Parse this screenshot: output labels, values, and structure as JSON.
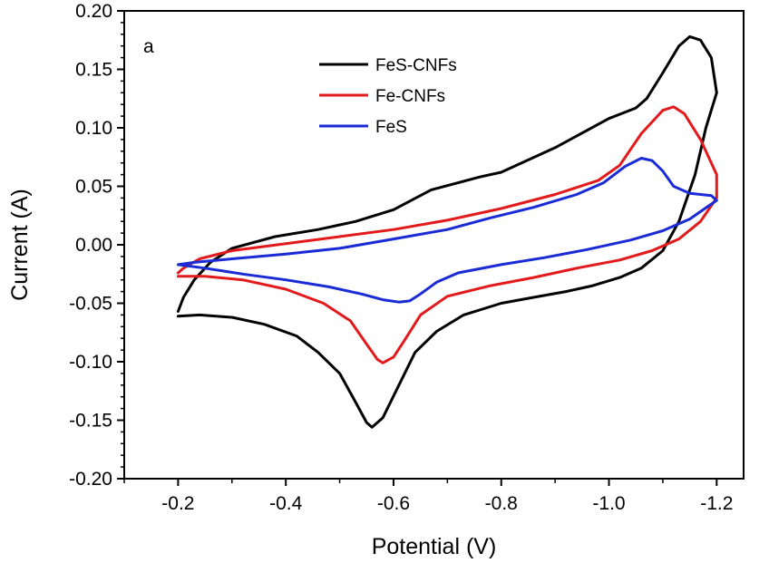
{
  "chart_data": {
    "type": "line",
    "panel_label": "a",
    "xlabel": "Potential (V)",
    "ylabel": "Current (A)",
    "xlim": [
      -0.1,
      -1.25
    ],
    "ylim": [
      -0.2,
      0.2
    ],
    "x_ticks": [
      -0.2,
      -0.4,
      -0.6,
      -0.8,
      -1.0,
      -1.2
    ],
    "x_tick_labels": [
      "-0.2",
      "-0.4",
      "-0.6",
      "-0.8",
      "-1.0",
      "-1.2"
    ],
    "y_ticks": [
      -0.2,
      -0.15,
      -0.1,
      -0.05,
      0.0,
      0.05,
      0.1,
      0.15,
      0.2
    ],
    "y_tick_labels": [
      "-0.20",
      "-0.15",
      "-0.10",
      "-0.05",
      "0.00",
      "0.05",
      "0.10",
      "0.15",
      "0.20"
    ],
    "grid": false,
    "legend_position": "top-center",
    "series": [
      {
        "name": "FeS-CNFs",
        "color": "#000000",
        "points": [
          [
            -0.2,
            -0.061
          ],
          [
            -0.24,
            -0.06
          ],
          [
            -0.3,
            -0.062
          ],
          [
            -0.36,
            -0.068
          ],
          [
            -0.42,
            -0.078
          ],
          [
            -0.46,
            -0.092
          ],
          [
            -0.5,
            -0.11
          ],
          [
            -0.53,
            -0.135
          ],
          [
            -0.55,
            -0.152
          ],
          [
            -0.56,
            -0.156
          ],
          [
            -0.58,
            -0.148
          ],
          [
            -0.61,
            -0.12
          ],
          [
            -0.64,
            -0.092
          ],
          [
            -0.68,
            -0.074
          ],
          [
            -0.73,
            -0.06
          ],
          [
            -0.8,
            -0.05
          ],
          [
            -0.86,
            -0.045
          ],
          [
            -0.92,
            -0.04
          ],
          [
            -0.97,
            -0.035
          ],
          [
            -1.02,
            -0.028
          ],
          [
            -1.06,
            -0.02
          ],
          [
            -1.1,
            -0.005
          ],
          [
            -1.13,
            0.02
          ],
          [
            -1.16,
            0.06
          ],
          [
            -1.18,
            0.1
          ],
          [
            -1.2,
            0.13
          ],
          [
            -1.19,
            0.16
          ],
          [
            -1.17,
            0.175
          ],
          [
            -1.15,
            0.178
          ],
          [
            -1.13,
            0.17
          ],
          [
            -1.1,
            0.147
          ],
          [
            -1.07,
            0.125
          ],
          [
            -1.05,
            0.117
          ],
          [
            -1.0,
            0.108
          ],
          [
            -0.9,
            0.083
          ],
          [
            -0.8,
            0.062
          ],
          [
            -0.76,
            0.058
          ],
          [
            -0.72,
            0.053
          ],
          [
            -0.67,
            0.047
          ],
          [
            -0.6,
            0.03
          ],
          [
            -0.53,
            0.02
          ],
          [
            -0.46,
            0.013
          ],
          [
            -0.38,
            0.007
          ],
          [
            -0.3,
            -0.003
          ],
          [
            -0.26,
            -0.015
          ],
          [
            -0.23,
            -0.03
          ],
          [
            -0.21,
            -0.045
          ],
          [
            -0.2,
            -0.057
          ]
        ]
      },
      {
        "name": "Fe-CNFs",
        "color": "#e31a1c",
        "points": [
          [
            -0.2,
            -0.027
          ],
          [
            -0.25,
            -0.027
          ],
          [
            -0.32,
            -0.03
          ],
          [
            -0.4,
            -0.038
          ],
          [
            -0.47,
            -0.05
          ],
          [
            -0.52,
            -0.065
          ],
          [
            -0.55,
            -0.085
          ],
          [
            -0.57,
            -0.098
          ],
          [
            -0.58,
            -0.101
          ],
          [
            -0.6,
            -0.096
          ],
          [
            -0.62,
            -0.082
          ],
          [
            -0.65,
            -0.06
          ],
          [
            -0.7,
            -0.044
          ],
          [
            -0.78,
            -0.035
          ],
          [
            -0.86,
            -0.028
          ],
          [
            -0.94,
            -0.02
          ],
          [
            -1.02,
            -0.013
          ],
          [
            -1.08,
            -0.005
          ],
          [
            -1.13,
            0.005
          ],
          [
            -1.17,
            0.02
          ],
          [
            -1.2,
            0.04
          ],
          [
            -1.2,
            0.06
          ],
          [
            -1.17,
            0.09
          ],
          [
            -1.14,
            0.112
          ],
          [
            -1.12,
            0.118
          ],
          [
            -1.1,
            0.115
          ],
          [
            -1.06,
            0.095
          ],
          [
            -1.02,
            0.068
          ],
          [
            -0.98,
            0.055
          ],
          [
            -0.9,
            0.043
          ],
          [
            -0.8,
            0.031
          ],
          [
            -0.7,
            0.021
          ],
          [
            -0.6,
            0.013
          ],
          [
            -0.5,
            0.007
          ],
          [
            -0.4,
            0.001
          ],
          [
            -0.3,
            -0.005
          ],
          [
            -0.24,
            -0.012
          ],
          [
            -0.21,
            -0.02
          ],
          [
            -0.2,
            -0.024
          ]
        ]
      },
      {
        "name": "FeS",
        "color": "#1a2bd6",
        "points": [
          [
            -0.2,
            -0.017
          ],
          [
            -0.25,
            -0.02
          ],
          [
            -0.32,
            -0.025
          ],
          [
            -0.4,
            -0.03
          ],
          [
            -0.48,
            -0.036
          ],
          [
            -0.54,
            -0.042
          ],
          [
            -0.58,
            -0.047
          ],
          [
            -0.61,
            -0.049
          ],
          [
            -0.63,
            -0.048
          ],
          [
            -0.65,
            -0.042
          ],
          [
            -0.68,
            -0.032
          ],
          [
            -0.72,
            -0.024
          ],
          [
            -0.8,
            -0.017
          ],
          [
            -0.88,
            -0.011
          ],
          [
            -0.96,
            -0.004
          ],
          [
            -1.04,
            0.004
          ],
          [
            -1.1,
            0.012
          ],
          [
            -1.15,
            0.022
          ],
          [
            -1.2,
            0.038
          ],
          [
            -1.19,
            0.042
          ],
          [
            -1.15,
            0.044
          ],
          [
            -1.12,
            0.05
          ],
          [
            -1.1,
            0.063
          ],
          [
            -1.08,
            0.072
          ],
          [
            -1.06,
            0.074
          ],
          [
            -1.03,
            0.067
          ],
          [
            -0.99,
            0.053
          ],
          [
            -0.94,
            0.043
          ],
          [
            -0.86,
            0.032
          ],
          [
            -0.78,
            0.023
          ],
          [
            -0.7,
            0.013
          ],
          [
            -0.6,
            0.005
          ],
          [
            -0.5,
            -0.003
          ],
          [
            -0.4,
            -0.008
          ],
          [
            -0.3,
            -0.012
          ],
          [
            -0.23,
            -0.015
          ],
          [
            -0.2,
            -0.017
          ]
        ]
      }
    ]
  }
}
